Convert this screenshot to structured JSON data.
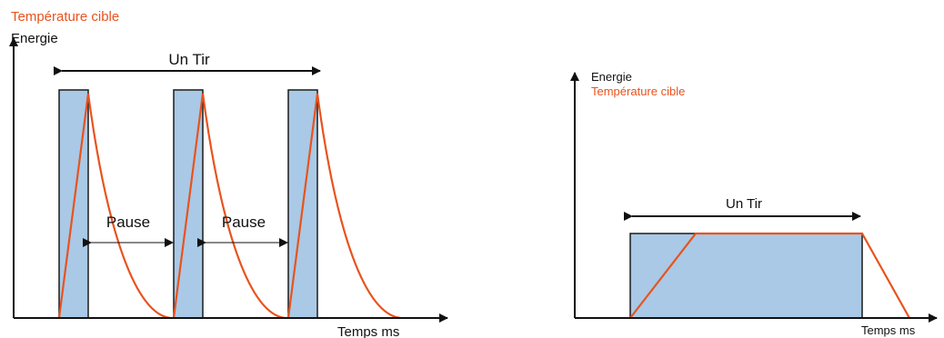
{
  "colors": {
    "pulse_fill": "#a9c9e6",
    "pulse_stroke": "#1a1a1a",
    "temperature": "#e8531e",
    "axis": "#111111"
  },
  "left_diagram": {
    "legend_temperature": "Température cible",
    "legend_energy": "Energie",
    "shot_label": "Un Tir",
    "pause_labels": [
      "Pause",
      "Pause"
    ],
    "x_axis_label": "Temps ms"
  },
  "right_diagram": {
    "legend_energy": "Energie",
    "legend_temperature": "Température cible",
    "shot_label": "Un Tir",
    "x_axis_label": "Temps ms"
  }
}
